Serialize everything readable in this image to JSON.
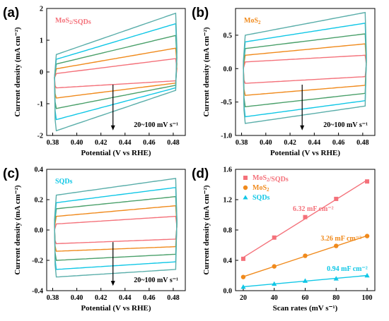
{
  "colors": [
    "#f4717a",
    "#f08a1c",
    "#4aa06a",
    "#10c7e6",
    "#5aaeaa"
  ],
  "chart_data": [
    {
      "panel": "(a)",
      "type": "line",
      "legend": "MoS2/SQDs",
      "xlabel": "Potential (V vs RHE)",
      "ylabel": "Current density (mA cm⁻²)",
      "xlim": [
        0.375,
        0.49
      ],
      "ylim": [
        -2,
        2
      ],
      "xticks": [
        "0.38",
        "0.40",
        "0.42",
        "0.44",
        "0.46",
        "0.48"
      ],
      "yticks": [
        "-2",
        "-1",
        "0",
        "1",
        "2"
      ],
      "annotation": "20~100 mV s⁻¹",
      "legend_color": "#f4717a",
      "series": [
        {
          "scan_rate": 20,
          "upper_start": -0.05,
          "upper_end": 0.42,
          "lower_start": -0.5,
          "lower_end": -0.28
        },
        {
          "scan_rate": 40,
          "upper_start": 0.1,
          "upper_end": 0.75,
          "lower_start": -0.82,
          "lower_end": -0.35
        },
        {
          "scan_rate": 60,
          "upper_start": 0.25,
          "upper_end": 1.15,
          "lower_start": -1.15,
          "lower_end": -0.42
        },
        {
          "scan_rate": 80,
          "upper_start": 0.4,
          "upper_end": 1.52,
          "lower_start": -1.5,
          "lower_end": -0.5
        },
        {
          "scan_rate": 100,
          "upper_start": 0.55,
          "upper_end": 1.85,
          "lower_start": -1.85,
          "lower_end": -0.58
        }
      ]
    },
    {
      "panel": "(b)",
      "type": "line",
      "legend": "MoS2",
      "xlabel": "Potential (V vs RHE)",
      "ylabel": "Current density (mA cm⁻²)",
      "xlim": [
        0.375,
        0.49
      ],
      "ylim": [
        -1.0,
        0.9
      ],
      "xticks": [
        "0.38",
        "0.40",
        "0.42",
        "0.44",
        "0.46",
        "0.48"
      ],
      "yticks": [
        "-1.0",
        "-0.5",
        "0.0",
        "0.5"
      ],
      "annotation": "20~100 mV s⁻¹",
      "legend_color": "#f08a1c",
      "series": [
        {
          "scan_rate": 20,
          "upper_start": 0.1,
          "upper_end": 0.2,
          "lower_start": -0.22,
          "lower_end": -0.12
        },
        {
          "scan_rate": 40,
          "upper_start": 0.2,
          "upper_end": 0.37,
          "lower_start": -0.4,
          "lower_end": -0.25
        },
        {
          "scan_rate": 60,
          "upper_start": 0.3,
          "upper_end": 0.52,
          "lower_start": -0.57,
          "lower_end": -0.37
        },
        {
          "scan_rate": 80,
          "upper_start": 0.4,
          "upper_end": 0.68,
          "lower_start": -0.72,
          "lower_end": -0.48
        },
        {
          "scan_rate": 100,
          "upper_start": 0.5,
          "upper_end": 0.84,
          "lower_start": -0.82,
          "lower_end": -0.56
        }
      ]
    },
    {
      "panel": "(c)",
      "type": "line",
      "legend": "SQDs",
      "xlabel": "Potential (V vs RHE)",
      "ylabel": "Current density (mA cm⁻²)",
      "xlim": [
        0.375,
        0.49
      ],
      "ylim": [
        -0.4,
        0.4
      ],
      "xticks": [
        "0.38",
        "0.40",
        "0.42",
        "0.44",
        "0.46",
        "0.48"
      ],
      "yticks": [
        "-0.4",
        "-0.2",
        "0.0",
        "0.2",
        "0.4"
      ],
      "annotation": "20~100 mV s⁻¹",
      "legend_color": "#10c7e6",
      "series": [
        {
          "scan_rate": 20,
          "upper_start": 0.04,
          "upper_end": 0.09,
          "lower_start": -0.09,
          "lower_end": -0.06
        },
        {
          "scan_rate": 40,
          "upper_start": 0.09,
          "upper_end": 0.16,
          "lower_start": -0.14,
          "lower_end": -0.11
        },
        {
          "scan_rate": 60,
          "upper_start": 0.14,
          "upper_end": 0.22,
          "lower_start": -0.2,
          "lower_end": -0.16
        },
        {
          "scan_rate": 80,
          "upper_start": 0.18,
          "upper_end": 0.28,
          "lower_start": -0.26,
          "lower_end": -0.21
        },
        {
          "scan_rate": 100,
          "upper_start": 0.23,
          "upper_end": 0.34,
          "lower_start": -0.31,
          "lower_end": -0.26
        }
      ]
    },
    {
      "panel": "(d)",
      "type": "scatter",
      "xlabel": "Scan rates (mV s⁻¹)",
      "ylabel": "Current density (mA cm⁻²)",
      "xlim": [
        15,
        105
      ],
      "ylim": [
        0,
        1.6
      ],
      "xticks": [
        "20",
        "40",
        "60",
        "80",
        "100"
      ],
      "yticks": [
        "0.0",
        "0.4",
        "0.8",
        "1.2",
        "1.6"
      ],
      "x": [
        20,
        40,
        60,
        80,
        100
      ],
      "series": [
        {
          "name": "MoS2/SQDs",
          "marker": "square",
          "color": "#f4717a",
          "values": [
            0.42,
            0.7,
            0.97,
            1.21,
            1.44
          ],
          "slope_label": "6.32 mF cm⁻²"
        },
        {
          "name": "MoS2",
          "marker": "circle",
          "color": "#f08a1c",
          "values": [
            0.18,
            0.32,
            0.46,
            0.59,
            0.72
          ],
          "slope_label": "3.26 mF cm⁻²"
        },
        {
          "name": "SQDs",
          "marker": "triangle",
          "color": "#10c7e6",
          "values": [
            0.05,
            0.09,
            0.13,
            0.16,
            0.2
          ],
          "slope_label": "0.94 mF cm⁻²"
        }
      ]
    }
  ]
}
